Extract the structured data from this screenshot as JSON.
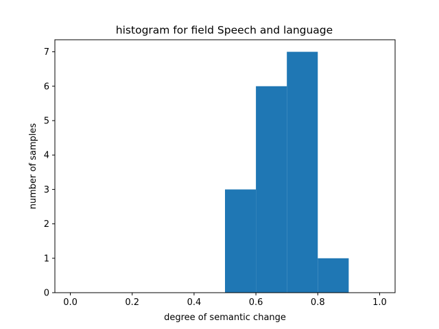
{
  "chart_data": {
    "type": "bar",
    "title": "histogram for field Speech and language",
    "xlabel": "degree of semantic change",
    "ylabel": "number of samples",
    "bins": [
      {
        "x0": 0.5,
        "x1": 0.6,
        "count": 3
      },
      {
        "x0": 0.6,
        "x1": 0.7,
        "count": 6
      },
      {
        "x0": 0.7,
        "x1": 0.8,
        "count": 7
      },
      {
        "x0": 0.8,
        "x1": 0.9,
        "count": 1
      }
    ],
    "xlim": [
      -0.05,
      1.05
    ],
    "ylim": [
      0,
      7.35
    ],
    "xticks": [
      0.0,
      0.2,
      0.4,
      0.6,
      0.8,
      1.0
    ],
    "xtick_labels": [
      "0.0",
      "0.2",
      "0.4",
      "0.6",
      "0.8",
      "1.0"
    ],
    "yticks": [
      0,
      1,
      2,
      3,
      4,
      5,
      6,
      7
    ],
    "ytick_labels": [
      "0",
      "1",
      "2",
      "3",
      "4",
      "5",
      "6",
      "7"
    ],
    "bar_color": "#1f77b4",
    "grid": false,
    "legend": "none"
  }
}
